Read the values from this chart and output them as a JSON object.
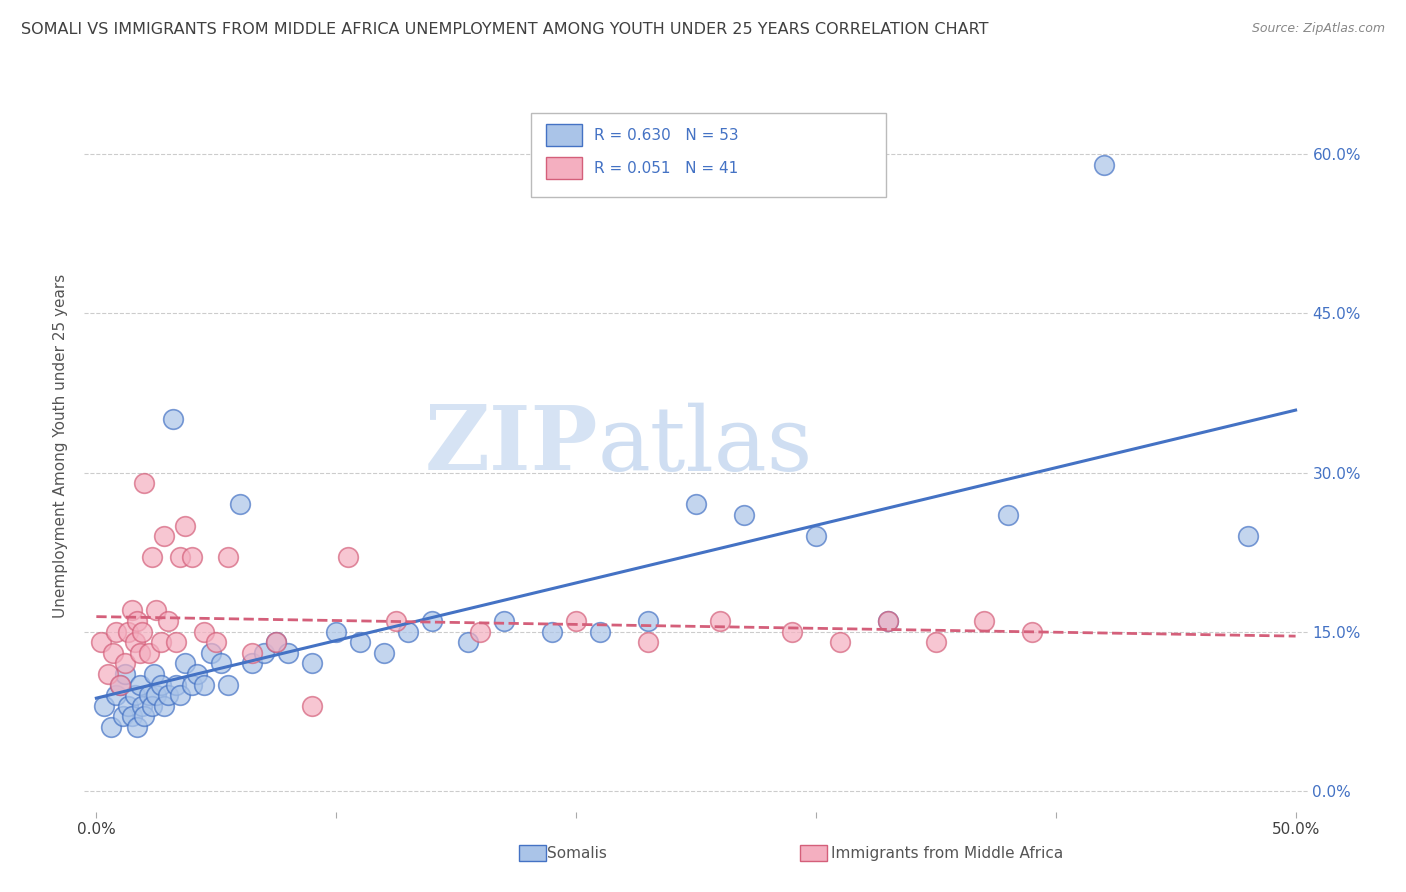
{
  "title": "SOMALI VS IMMIGRANTS FROM MIDDLE AFRICA UNEMPLOYMENT AMONG YOUTH UNDER 25 YEARS CORRELATION CHART",
  "source": "Source: ZipAtlas.com",
  "ylabel": "Unemployment Among Youth under 25 years",
  "xlim": [
    -0.005,
    0.505
  ],
  "ylim": [
    -0.02,
    0.67
  ],
  "yticks": [
    0.0,
    0.15,
    0.3,
    0.45,
    0.6
  ],
  "xticks": [
    0.0,
    0.1,
    0.2,
    0.3,
    0.4,
    0.5
  ],
  "ytick_labels_right": [
    "0.0%",
    "15.0%",
    "30.0%",
    "45.0%",
    "60.0%"
  ],
  "xtick_labels": [
    "0.0%",
    "",
    "",
    "",
    "",
    "50.0%"
  ],
  "series1_label": "Somalis",
  "series2_label": "Immigrants from Middle Africa",
  "series1_R": "R = 0.630",
  "series1_N": "N = 53",
  "series2_R": "R = 0.051",
  "series2_N": "N = 41",
  "series1_color": "#aac4e8",
  "series2_color": "#f4afc0",
  "series1_line_color": "#4472c4",
  "series2_line_color": "#d45f7a",
  "watermark_zip": "ZIP",
  "watermark_atlas": "atlas",
  "title_color": "#404040",
  "title_fontsize": 11.5,
  "axis_label_color": "#555555",
  "right_tick_color": "#4472c4",
  "series1_x": [
    0.003,
    0.006,
    0.008,
    0.01,
    0.011,
    0.012,
    0.013,
    0.015,
    0.016,
    0.017,
    0.018,
    0.019,
    0.02,
    0.022,
    0.023,
    0.024,
    0.025,
    0.027,
    0.028,
    0.03,
    0.032,
    0.033,
    0.035,
    0.037,
    0.04,
    0.042,
    0.045,
    0.048,
    0.052,
    0.055,
    0.06,
    0.065,
    0.07,
    0.075,
    0.08,
    0.09,
    0.1,
    0.11,
    0.12,
    0.13,
    0.14,
    0.155,
    0.17,
    0.19,
    0.21,
    0.23,
    0.25,
    0.27,
    0.3,
    0.33,
    0.38,
    0.42,
    0.48
  ],
  "series1_y": [
    0.08,
    0.06,
    0.09,
    0.1,
    0.07,
    0.11,
    0.08,
    0.07,
    0.09,
    0.06,
    0.1,
    0.08,
    0.07,
    0.09,
    0.08,
    0.11,
    0.09,
    0.1,
    0.08,
    0.09,
    0.35,
    0.1,
    0.09,
    0.12,
    0.1,
    0.11,
    0.1,
    0.13,
    0.12,
    0.1,
    0.27,
    0.12,
    0.13,
    0.14,
    0.13,
    0.12,
    0.15,
    0.14,
    0.13,
    0.15,
    0.16,
    0.14,
    0.16,
    0.15,
    0.15,
    0.16,
    0.27,
    0.26,
    0.24,
    0.16,
    0.26,
    0.59,
    0.24
  ],
  "series2_x": [
    0.002,
    0.005,
    0.007,
    0.008,
    0.01,
    0.012,
    0.013,
    0.015,
    0.016,
    0.017,
    0.018,
    0.019,
    0.02,
    0.022,
    0.023,
    0.025,
    0.027,
    0.028,
    0.03,
    0.033,
    0.035,
    0.037,
    0.04,
    0.045,
    0.05,
    0.055,
    0.065,
    0.075,
    0.09,
    0.105,
    0.125,
    0.16,
    0.2,
    0.23,
    0.26,
    0.29,
    0.31,
    0.33,
    0.35,
    0.37,
    0.39
  ],
  "series2_y": [
    0.14,
    0.11,
    0.13,
    0.15,
    0.1,
    0.12,
    0.15,
    0.17,
    0.14,
    0.16,
    0.13,
    0.15,
    0.29,
    0.13,
    0.22,
    0.17,
    0.14,
    0.24,
    0.16,
    0.14,
    0.22,
    0.25,
    0.22,
    0.15,
    0.14,
    0.22,
    0.13,
    0.14,
    0.08,
    0.22,
    0.16,
    0.15,
    0.16,
    0.14,
    0.16,
    0.15,
    0.14,
    0.16,
    0.14,
    0.16,
    0.15
  ]
}
